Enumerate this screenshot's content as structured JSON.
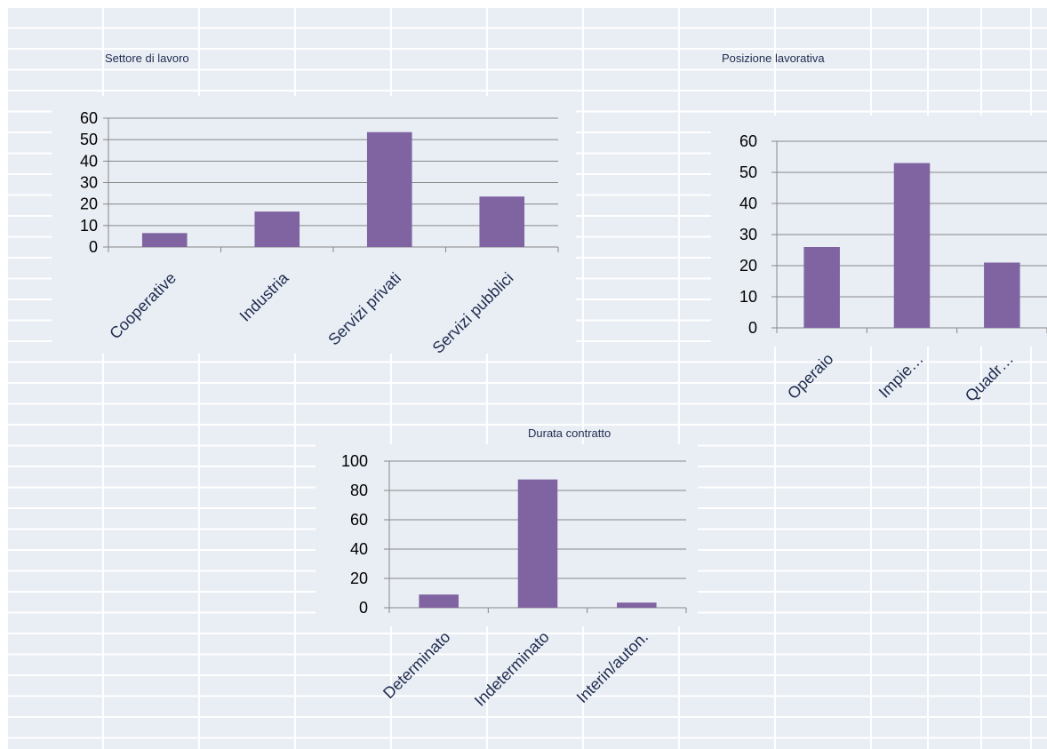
{
  "chart_data": [
    {
      "type": "bar",
      "title": "Settore di lavoro",
      "categories": [
        "Cooperative",
        "Industria",
        "Servizi privati",
        "Servizi pubblici"
      ],
      "values": [
        6.5,
        16.5,
        53.5,
        23.5
      ],
      "ylim": [
        0,
        60
      ],
      "yticks": [
        0,
        10,
        20,
        30,
        40,
        50,
        60
      ],
      "grid": true,
      "bar_color": "#8064a2"
    },
    {
      "type": "bar",
      "title": "Posizione lavorativa",
      "categories": [
        "Operaio",
        "Impie…",
        "Quadr…"
      ],
      "values": [
        26,
        53,
        21
      ],
      "ylim": [
        0,
        60
      ],
      "yticks": [
        0,
        10,
        20,
        30,
        40,
        50,
        60
      ],
      "grid": true,
      "bar_color": "#8064a2"
    },
    {
      "type": "bar",
      "title": "Durata contratto",
      "categories": [
        "Determinato",
        "Indeterminato",
        "Interin/auton."
      ],
      "values": [
        9,
        87.5,
        3.5
      ],
      "ylim": [
        0,
        100
      ],
      "yticks": [
        0,
        20,
        40,
        60,
        80,
        100
      ],
      "grid": true,
      "bar_color": "#8064a2"
    }
  ],
  "colors": {
    "sheet_background": "#e9eef5",
    "cell_border": "#ffffff",
    "gridline": "#868686",
    "bar": "#8064a2"
  }
}
